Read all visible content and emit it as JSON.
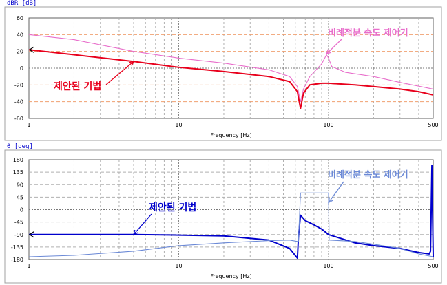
{
  "chart_data": [
    {
      "type": "line",
      "ylabel": "dBR [dB]",
      "xlabel": "Frequency [Hz]",
      "xscale": "log",
      "xlim": [
        1,
        500
      ],
      "ylim": [
        -60,
        60
      ],
      "x_ticklabels": [
        "1",
        "10",
        "100",
        "500"
      ],
      "y_ticks": [
        60,
        40,
        20,
        0,
        -20,
        -40,
        -60
      ],
      "grid": true,
      "series": [
        {
          "name": "제안된 기법",
          "color": "#e8001c",
          "x": [
            1,
            2,
            5,
            10,
            20,
            40,
            55,
            62,
            65,
            68,
            75,
            90,
            100,
            150,
            200,
            300,
            400,
            500
          ],
          "y": [
            22,
            16,
            8,
            1,
            -4,
            -10,
            -16,
            -28,
            -48,
            -30,
            -20,
            -18,
            -18,
            -20,
            -22,
            -25,
            -28,
            -32
          ]
        },
        {
          "name": "비례적분 속도 제어기",
          "color": "#e86ecb",
          "x": [
            1,
            2,
            5,
            10,
            20,
            40,
            55,
            62,
            65,
            68,
            75,
            90,
            97,
            100,
            105,
            130,
            200,
            300,
            500
          ],
          "y": [
            40,
            34,
            20,
            12,
            6,
            -2,
            -10,
            -22,
            -40,
            -25,
            -10,
            5,
            16,
            12,
            2,
            -5,
            -10,
            -17,
            -25
          ]
        }
      ],
      "annotations": [
        {
          "text": "제안된 기법",
          "color": "#e8001c",
          "arrow_to": [
            5,
            8
          ]
        },
        {
          "text": "비례적분 속도 제어기",
          "color": "#e86ecb",
          "arrow_to": [
            97,
            17
          ]
        }
      ]
    },
    {
      "type": "line",
      "ylabel": "θ [deg]",
      "xlabel": "Frequency [Hz]",
      "xscale": "log",
      "xlim": [
        1,
        500
      ],
      "ylim": [
        -180,
        180
      ],
      "x_ticklabels": [
        "1",
        "10",
        "100",
        "500"
      ],
      "y_ticks": [
        180,
        135,
        90,
        45,
        0,
        -45,
        -90,
        -135,
        -180
      ],
      "grid": true,
      "series": [
        {
          "name": "제안된 기법",
          "color": "#0000cc",
          "x": [
            1,
            2,
            5,
            10,
            20,
            40,
            55,
            62,
            63,
            65,
            70,
            80,
            90,
            100,
            150,
            200,
            300,
            400,
            470,
            480,
            490,
            500
          ],
          "y": [
            -90,
            -90,
            -90,
            -92,
            -95,
            -110,
            -140,
            -175,
            -100,
            -20,
            -40,
            -55,
            -70,
            -90,
            -120,
            -130,
            -140,
            -155,
            -160,
            -150,
            160,
            -170
          ]
        },
        {
          "name": "비례적분 속도 제어기",
          "color": "#6b89d6",
          "x": [
            1,
            2,
            5,
            10,
            20,
            40,
            55,
            62,
            63,
            65,
            80,
            95,
            100,
            101,
            150,
            200,
            300,
            400,
            500
          ],
          "y": [
            -170,
            -165,
            -150,
            -130,
            -120,
            -112,
            -110,
            -115,
            -115,
            60,
            60,
            60,
            60,
            -110,
            -115,
            -125,
            -140,
            -160,
            -170
          ]
        }
      ],
      "annotations": [
        {
          "text": "제안된 기법",
          "color": "#0000cc",
          "arrow_to": [
            5,
            -90
          ]
        },
        {
          "text": "비례적분 속도 제어기",
          "color": "#6b89d6",
          "arrow_to": [
            100,
            25
          ]
        }
      ]
    }
  ]
}
